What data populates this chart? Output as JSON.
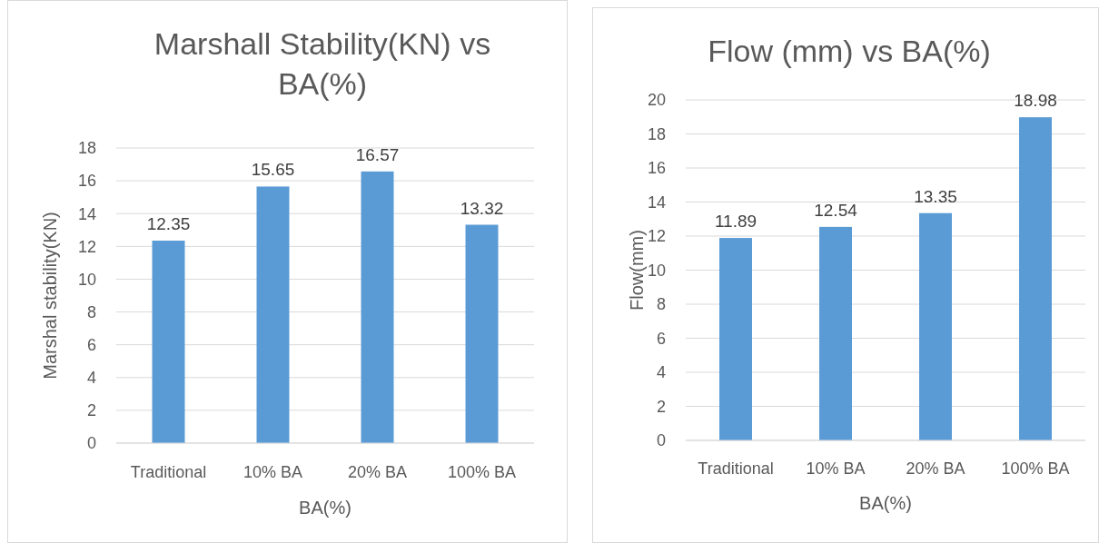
{
  "chart_data": [
    {
      "type": "bar",
      "title": "Marshall Stability(KN) vs BA(%)",
      "xlabel": "BA(%)",
      "ylabel": "Marshal stability(KN)",
      "categories": [
        "Traditional",
        "10% BA",
        "20% BA",
        "100% BA"
      ],
      "values": [
        12.35,
        15.65,
        16.57,
        13.32
      ],
      "color": "#5b9bd5",
      "ylim": [
        0,
        18
      ],
      "yticks": [
        0,
        2,
        4,
        6,
        8,
        10,
        12,
        14,
        16,
        18
      ],
      "grid": "y",
      "data_labels": true
    },
    {
      "type": "bar",
      "title": "Flow (mm) vs BA(%)",
      "xlabel": "BA(%)",
      "ylabel": "Flow(mm)",
      "categories": [
        "Traditional",
        "10% BA",
        "20% BA",
        "100% BA"
      ],
      "values": [
        11.89,
        12.54,
        13.35,
        18.98
      ],
      "color": "#5b9bd5",
      "ylim": [
        0,
        20
      ],
      "yticks": [
        0,
        2,
        4,
        6,
        8,
        10,
        12,
        14,
        16,
        18,
        20
      ],
      "grid": "y",
      "data_labels": true
    }
  ]
}
